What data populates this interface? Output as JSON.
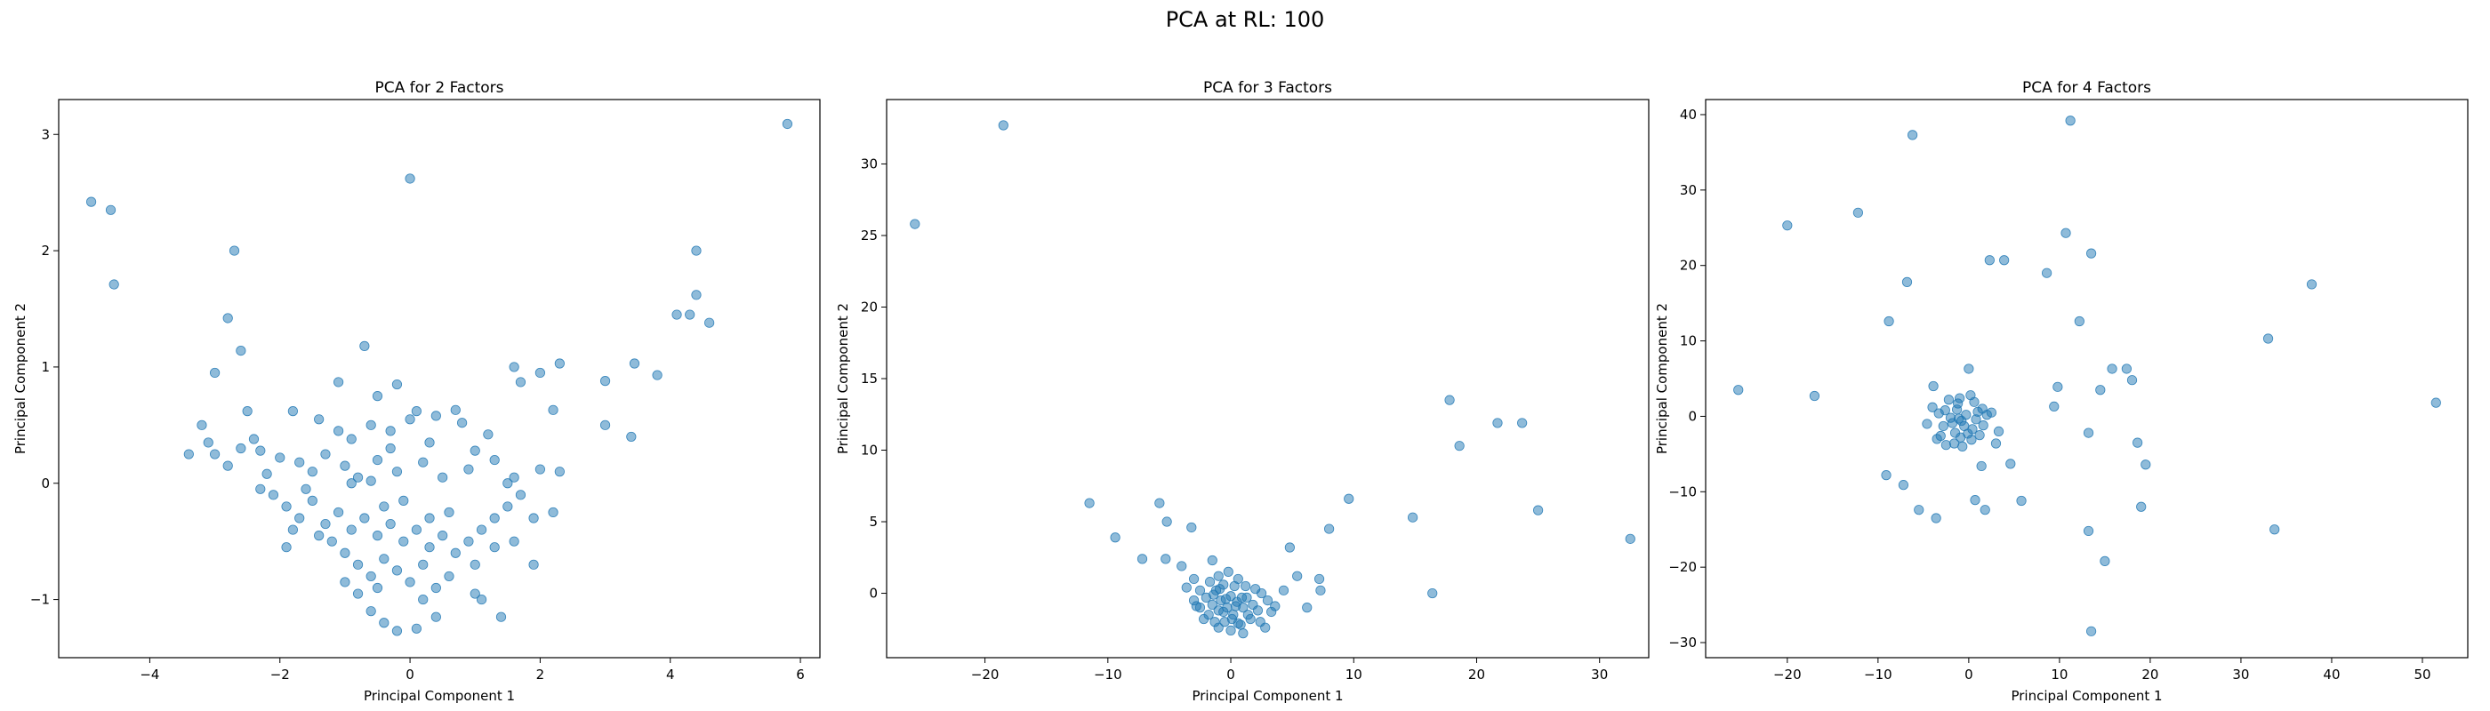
{
  "figure": {
    "title": "PCA at RL: 100",
    "marker_color": "#1f77b4"
  },
  "chart_data": [
    {
      "type": "scatter",
      "title": "PCA for 2 Factors",
      "xlabel": "Principal Component 1",
      "ylabel": "Principal Component 2",
      "xlim": [
        -5.4,
        6.3
      ],
      "ylim": [
        -1.5,
        3.3
      ],
      "xticks": [
        -4,
        -2,
        0,
        2,
        4,
        6
      ],
      "yticks": [
        -1,
        0,
        1,
        2,
        3
      ],
      "grid": false,
      "points": [
        [
          -4.9,
          2.42
        ],
        [
          -4.6,
          2.35
        ],
        [
          -4.55,
          1.71
        ],
        [
          5.8,
          3.09
        ],
        [
          0.0,
          2.62
        ],
        [
          4.4,
          2.0
        ],
        [
          4.4,
          1.62
        ],
        [
          4.6,
          1.38
        ],
        [
          4.1,
          1.45
        ],
        [
          4.3,
          1.45
        ],
        [
          3.45,
          1.03
        ],
        [
          3.8,
          0.93
        ],
        [
          3.0,
          0.88
        ],
        [
          3.0,
          0.5
        ],
        [
          3.4,
          0.4
        ],
        [
          -2.7,
          2.0
        ],
        [
          -2.8,
          1.42
        ],
        [
          -2.6,
          1.14
        ],
        [
          -3.0,
          0.95
        ],
        [
          -0.7,
          1.18
        ],
        [
          -1.1,
          0.87
        ],
        [
          -0.5,
          0.75
        ],
        [
          -0.2,
          0.85
        ],
        [
          0.1,
          0.62
        ],
        [
          0.7,
          0.63
        ],
        [
          1.6,
          1.0
        ],
        [
          1.7,
          0.87
        ],
        [
          2.0,
          0.95
        ],
        [
          2.3,
          1.03
        ],
        [
          2.2,
          0.63
        ],
        [
          -3.4,
          0.25
        ],
        [
          -3.2,
          0.5
        ],
        [
          -3.1,
          0.35
        ],
        [
          -3.0,
          0.25
        ],
        [
          -2.8,
          0.15
        ],
        [
          -2.6,
          0.3
        ],
        [
          -2.4,
          0.38
        ],
        [
          -2.3,
          0.28
        ],
        [
          -1.8,
          0.62
        ],
        [
          -1.4,
          0.55
        ],
        [
          -1.1,
          0.45
        ],
        [
          -0.9,
          0.38
        ],
        [
          -0.6,
          0.5
        ],
        [
          -0.3,
          0.45
        ],
        [
          0.0,
          0.55
        ],
        [
          0.4,
          0.58
        ],
        [
          0.8,
          0.52
        ],
        [
          1.2,
          0.42
        ],
        [
          -2.2,
          0.08
        ],
        [
          -2.0,
          0.22
        ],
        [
          -1.7,
          0.18
        ],
        [
          -1.5,
          0.1
        ],
        [
          -1.3,
          0.25
        ],
        [
          -1.0,
          0.15
        ],
        [
          -0.8,
          0.05
        ],
        [
          -0.5,
          0.2
        ],
        [
          -0.2,
          0.1
        ],
        [
          0.2,
          0.18
        ],
        [
          0.5,
          0.05
        ],
        [
          0.9,
          0.12
        ],
        [
          1.3,
          0.2
        ],
        [
          1.6,
          0.05
        ],
        [
          2.0,
          0.12
        ],
        [
          2.3,
          0.1
        ],
        [
          -2.3,
          -0.05
        ],
        [
          -2.1,
          -0.1
        ],
        [
          -1.9,
          -0.2
        ],
        [
          -1.7,
          -0.3
        ],
        [
          -1.5,
          -0.15
        ],
        [
          -1.3,
          -0.35
        ],
        [
          -1.1,
          -0.25
        ],
        [
          -0.9,
          -0.4
        ],
        [
          -0.7,
          -0.3
        ],
        [
          -0.5,
          -0.45
        ],
        [
          -0.3,
          -0.35
        ],
        [
          -0.1,
          -0.5
        ],
        [
          0.1,
          -0.4
        ],
        [
          0.3,
          -0.55
        ],
        [
          0.5,
          -0.45
        ],
        [
          0.7,
          -0.6
        ],
        [
          0.9,
          -0.5
        ],
        [
          1.1,
          -0.4
        ],
        [
          1.3,
          -0.3
        ],
        [
          1.5,
          -0.2
        ],
        [
          1.7,
          -0.1
        ],
        [
          1.9,
          -0.3
        ],
        [
          2.2,
          -0.25
        ],
        [
          1.5,
          0.0
        ],
        [
          -1.0,
          -0.6
        ],
        [
          -0.8,
          -0.7
        ],
        [
          -0.6,
          -0.8
        ],
        [
          -0.4,
          -0.65
        ],
        [
          -0.2,
          -0.75
        ],
        [
          0.0,
          -0.85
        ],
        [
          0.2,
          -0.7
        ],
        [
          0.4,
          -0.9
        ],
        [
          0.6,
          -0.8
        ],
        [
          1.0,
          -0.7
        ],
        [
          1.3,
          -0.55
        ],
        [
          1.6,
          -0.5
        ],
        [
          1.9,
          -0.7
        ],
        [
          -1.2,
          -0.5
        ],
        [
          -1.0,
          -0.85
        ],
        [
          -0.8,
          -0.95
        ],
        [
          -0.6,
          -1.1
        ],
        [
          -0.4,
          -1.2
        ],
        [
          -0.2,
          -1.27
        ],
        [
          0.1,
          -1.25
        ],
        [
          0.2,
          -1.0
        ],
        [
          0.4,
          -1.15
        ],
        [
          1.0,
          -0.95
        ],
        [
          1.1,
          -1.0
        ],
        [
          1.4,
          -1.15
        ],
        [
          -0.5,
          -0.9
        ],
        [
          0.3,
          -0.3
        ],
        [
          0.6,
          -0.25
        ],
        [
          -0.9,
          0.0
        ],
        [
          -0.4,
          -0.2
        ],
        [
          -1.8,
          -0.4
        ],
        [
          -1.6,
          -0.05
        ],
        [
          -2.5,
          0.62
        ],
        [
          -1.9,
          -0.55
        ],
        [
          -1.4,
          -0.45
        ],
        [
          -0.3,
          0.3
        ],
        [
          0.3,
          0.35
        ],
        [
          1.0,
          0.28
        ],
        [
          -0.6,
          0.02
        ],
        [
          -0.1,
          -0.15
        ]
      ]
    },
    {
      "type": "scatter",
      "title": "PCA for 3 Factors",
      "xlabel": "Principal Component 1",
      "ylabel": "Principal Component 2",
      "xlim": [
        -28,
        34
      ],
      "ylim": [
        -4.5,
        34.5
      ],
      "xticks": [
        -20,
        -10,
        0,
        10,
        20,
        30
      ],
      "yticks": [
        0,
        5,
        10,
        15,
        20,
        25,
        30
      ],
      "grid": false,
      "points": [
        [
          -18.5,
          32.7
        ],
        [
          -25.7,
          25.8
        ],
        [
          -11.5,
          6.3
        ],
        [
          -9.4,
          3.9
        ],
        [
          -5.8,
          6.3
        ],
        [
          -5.2,
          5.0
        ],
        [
          -3.2,
          4.6
        ],
        [
          -7.2,
          2.4
        ],
        [
          -5.3,
          2.4
        ],
        [
          -4.0,
          1.9
        ],
        [
          -3.0,
          1.0
        ],
        [
          -2.5,
          0.2
        ],
        [
          -1.5,
          2.3
        ],
        [
          -1.0,
          1.2
        ],
        [
          4.8,
          3.2
        ],
        [
          6.2,
          -1.0
        ],
        [
          5.4,
          1.2
        ],
        [
          7.2,
          1.0
        ],
        [
          7.3,
          0.2
        ],
        [
          8.0,
          4.5
        ],
        [
          9.6,
          6.6
        ],
        [
          14.8,
          5.3
        ],
        [
          16.4,
          0.0
        ],
        [
          17.8,
          13.5
        ],
        [
          18.6,
          10.3
        ],
        [
          21.7,
          11.9
        ],
        [
          23.7,
          11.9
        ],
        [
          25.0,
          5.8
        ],
        [
          32.5,
          3.8
        ],
        [
          -3.0,
          -0.5
        ],
        [
          -2.5,
          -1.0
        ],
        [
          -2.0,
          -0.3
        ],
        [
          -1.8,
          -1.5
        ],
        [
          -1.5,
          -0.8
        ],
        [
          -1.2,
          0.2
        ],
        [
          -1.0,
          -1.2
        ],
        [
          -0.8,
          -0.5
        ],
        [
          -0.5,
          -2.0
        ],
        [
          -0.3,
          -1.0
        ],
        [
          0.0,
          -0.2
        ],
        [
          0.2,
          -1.5
        ],
        [
          0.5,
          -0.6
        ],
        [
          0.8,
          -2.2
        ],
        [
          1.0,
          -1.0
        ],
        [
          1.3,
          -0.3
        ],
        [
          1.6,
          -1.8
        ],
        [
          1.8,
          -0.8
        ],
        [
          2.2,
          -1.2
        ],
        [
          2.5,
          0.0
        ],
        [
          3.0,
          -0.5
        ],
        [
          3.3,
          -1.3
        ],
        [
          -1.7,
          0.8
        ],
        [
          -0.6,
          0.6
        ],
        [
          0.3,
          0.5
        ],
        [
          1.2,
          0.5
        ],
        [
          2.0,
          0.3
        ],
        [
          -2.2,
          -1.8
        ],
        [
          -1.0,
          -2.4
        ],
        [
          0.0,
          -2.6
        ],
        [
          1.0,
          -2.8
        ],
        [
          2.4,
          -2.0
        ],
        [
          -0.2,
          1.5
        ],
        [
          0.6,
          1.0
        ],
        [
          -1.4,
          -0.1
        ],
        [
          -0.4,
          -0.4
        ],
        [
          0.4,
          -0.9
        ],
        [
          1.4,
          -1.5
        ],
        [
          -2.8,
          -0.9
        ],
        [
          -0.9,
          0.3
        ],
        [
          0.1,
          -1.8
        ],
        [
          0.9,
          -0.3
        ],
        [
          -0.6,
          -1.3
        ],
        [
          3.6,
          -0.9
        ],
        [
          2.8,
          -2.4
        ],
        [
          -3.6,
          0.4
        ],
        [
          4.3,
          0.2
        ],
        [
          -1.3,
          -2.0
        ],
        [
          0.6,
          -2.1
        ]
      ]
    },
    {
      "type": "scatter",
      "title": "PCA for 4 Factors",
      "xlabel": "Principal Component 1",
      "ylabel": "Principal Component 2",
      "xlim": [
        -29,
        55
      ],
      "ylim": [
        -32,
        42
      ],
      "xticks": [
        -20,
        -10,
        0,
        10,
        20,
        30,
        40,
        50
      ],
      "yticks": [
        -30,
        -20,
        -10,
        0,
        10,
        20,
        30,
        40
      ],
      "grid": false,
      "points": [
        [
          11.2,
          39.2
        ],
        [
          -6.2,
          37.3
        ],
        [
          -12.2,
          27.0
        ],
        [
          -20.0,
          25.3
        ],
        [
          -25.4,
          3.5
        ],
        [
          -17.0,
          2.7
        ],
        [
          -6.8,
          17.8
        ],
        [
          -8.8,
          12.6
        ],
        [
          2.3,
          20.7
        ],
        [
          3.9,
          20.7
        ],
        [
          8.6,
          19.0
        ],
        [
          10.7,
          24.3
        ],
        [
          13.5,
          21.6
        ],
        [
          12.2,
          12.6
        ],
        [
          37.8,
          17.5
        ],
        [
          33.0,
          10.3
        ],
        [
          51.5,
          1.8
        ],
        [
          33.7,
          -15.0
        ],
        [
          19.5,
          -6.4
        ],
        [
          18.6,
          -3.5
        ],
        [
          19.0,
          -12.0
        ],
        [
          13.2,
          -15.2
        ],
        [
          13.5,
          -28.5
        ],
        [
          15.0,
          -19.2
        ],
        [
          13.2,
          -2.2
        ],
        [
          14.5,
          3.5
        ],
        [
          15.8,
          6.3
        ],
        [
          17.4,
          6.3
        ],
        [
          18.0,
          4.8
        ],
        [
          9.8,
          3.9
        ],
        [
          9.4,
          1.3
        ],
        [
          0.0,
          6.3
        ],
        [
          -9.1,
          -7.8
        ],
        [
          -7.2,
          -9.1
        ],
        [
          -5.5,
          -12.4
        ],
        [
          -3.6,
          -13.5
        ],
        [
          0.7,
          -11.1
        ],
        [
          1.8,
          -12.4
        ],
        [
          5.8,
          -11.2
        ],
        [
          4.6,
          -6.3
        ],
        [
          1.4,
          -6.6
        ],
        [
          -3.9,
          4.0
        ],
        [
          2.5,
          0.5
        ],
        [
          3.3,
          -2.0
        ],
        [
          -3.5,
          -3.0
        ],
        [
          -1.5,
          -2.2
        ],
        [
          -0.8,
          -0.6
        ],
        [
          -2.6,
          0.8
        ],
        [
          -1.2,
          1.7
        ],
        [
          0.4,
          -1.7
        ],
        [
          -0.3,
          0.2
        ],
        [
          -2.0,
          -0.2
        ],
        [
          1.0,
          0.6
        ],
        [
          -4.0,
          1.2
        ],
        [
          -0.7,
          -4.0
        ],
        [
          -2.8,
          -1.3
        ],
        [
          0.3,
          -3.1
        ],
        [
          1.6,
          -1.2
        ],
        [
          -1.0,
          2.4
        ],
        [
          0.6,
          1.9
        ],
        [
          -3.1,
          -2.6
        ],
        [
          -1.6,
          -3.6
        ],
        [
          1.2,
          -2.5
        ],
        [
          2.0,
          0.2
        ],
        [
          -0.5,
          -1.3
        ],
        [
          -2.2,
          2.2
        ],
        [
          0.8,
          -0.4
        ],
        [
          -1.8,
          -0.9
        ],
        [
          -0.1,
          -2.3
        ],
        [
          -3.3,
          0.4
        ],
        [
          -1.3,
          0.9
        ],
        [
          0.2,
          2.8
        ],
        [
          1.5,
          1.0
        ],
        [
          -2.5,
          -3.8
        ],
        [
          -0.9,
          -2.8
        ],
        [
          -4.6,
          -1.0
        ],
        [
          3.0,
          -3.6
        ],
        [
          -1.1,
          -0.3
        ]
      ]
    }
  ]
}
